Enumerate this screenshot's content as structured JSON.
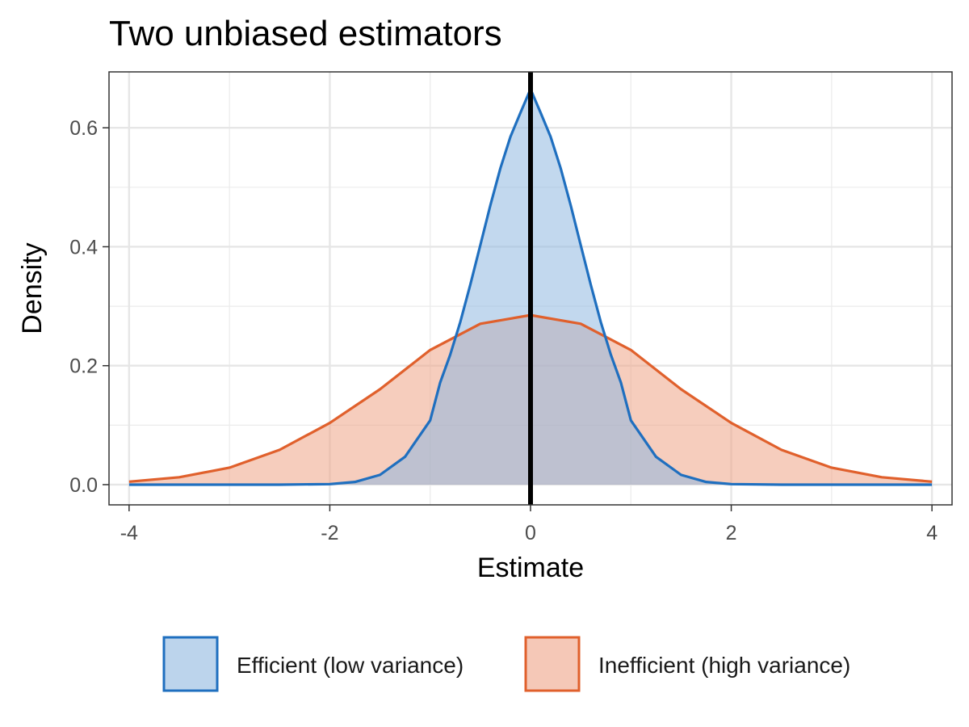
{
  "chart_data": {
    "type": "area",
    "title": "Two unbiased estimators",
    "xlabel": "Estimate",
    "ylabel": "Density",
    "xlim": [
      -4.2,
      4.2
    ],
    "ylim": [
      -0.034,
      0.694
    ],
    "x_ticks": [
      -4,
      -2,
      0,
      2,
      4
    ],
    "x_tick_labels": [
      "-4",
      "-2",
      "0",
      "2",
      "4"
    ],
    "y_ticks": [
      0.0,
      0.2,
      0.4,
      0.6
    ],
    "y_tick_labels": [
      "0.0",
      "0.2",
      "0.4",
      "0.6"
    ],
    "grid": true,
    "legend_position": "bottom",
    "reference_line": {
      "x": 0,
      "color": "#000000"
    },
    "series": [
      {
        "name": "Efficient (low variance)",
        "stroke": "#1f6fbf",
        "fill": "#8fb8e0",
        "x": [
          -4,
          -3.5,
          -3,
          -2.5,
          -2,
          -1.75,
          -1.5,
          -1.25,
          -1,
          -0.9,
          -0.8,
          -0.7,
          -0.6,
          -0.5,
          -0.4,
          -0.3,
          -0.2,
          -0.1,
          0,
          0.1,
          0.2,
          0.3,
          0.4,
          0.5,
          0.6,
          0.7,
          0.8,
          0.9,
          1,
          1.25,
          1.5,
          1.75,
          2,
          2.5,
          3,
          3.5,
          4
        ],
        "y": [
          0.0,
          0.0,
          0.0,
          0.0,
          0.0009,
          0.0045,
          0.0164,
          0.0469,
          0.108,
          0.1719,
          0.2185,
          0.2734,
          0.3363,
          0.4028,
          0.4699,
          0.5321,
          0.585,
          0.6255,
          0.665,
          0.6255,
          0.585,
          0.5321,
          0.4699,
          0.4028,
          0.3363,
          0.2734,
          0.2185,
          0.1719,
          0.108,
          0.0469,
          0.0164,
          0.0045,
          0.0009,
          0.0,
          0.0,
          0.0,
          0.0
        ]
      },
      {
        "name": "Inefficient (high variance)",
        "stroke": "#e0602c",
        "fill": "#eea487",
        "x": [
          -4,
          -3.5,
          -3,
          -2.5,
          -2,
          -1.5,
          -1,
          -0.5,
          0,
          0.5,
          1,
          1.5,
          2,
          2.5,
          3,
          3.5,
          4
        ],
        "y": [
          0.005,
          0.0124,
          0.0285,
          0.0585,
          0.1038,
          0.1604,
          0.2264,
          0.2705,
          0.285,
          0.2705,
          0.2264,
          0.1604,
          0.1038,
          0.0585,
          0.0285,
          0.0124,
          0.005
        ]
      }
    ]
  }
}
